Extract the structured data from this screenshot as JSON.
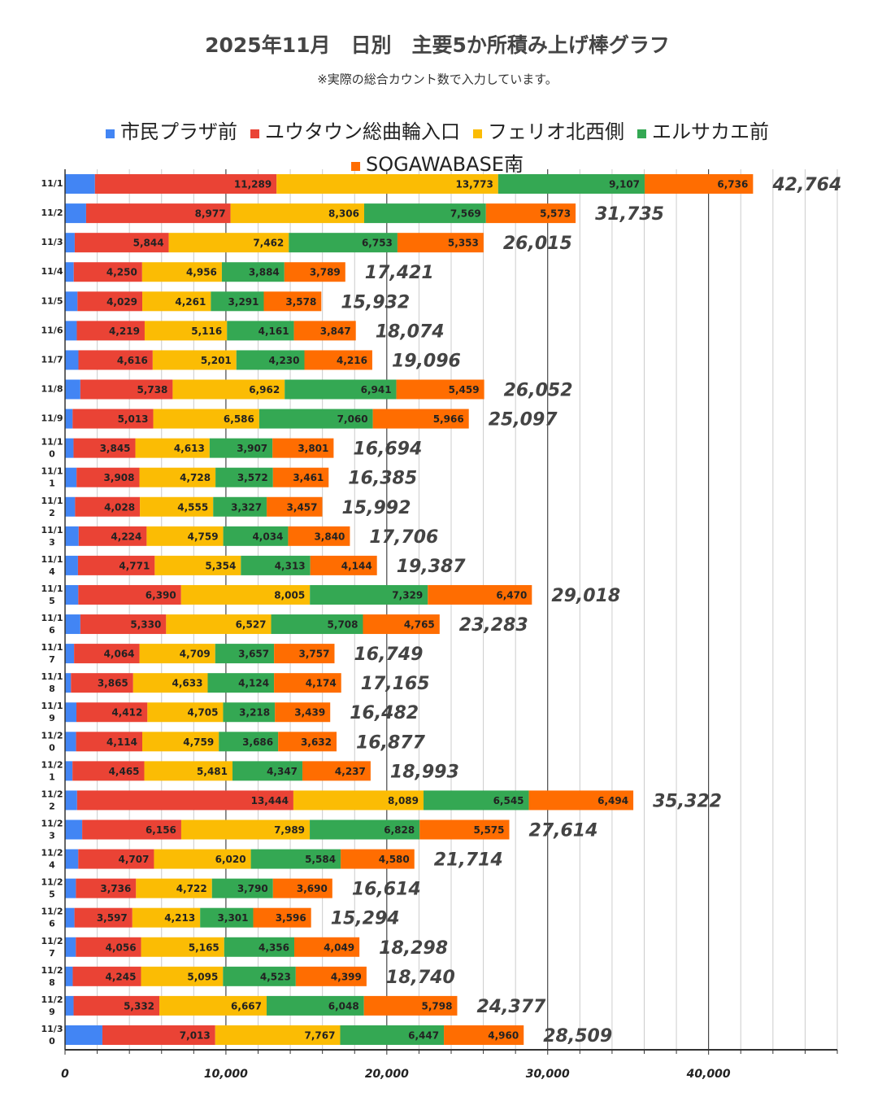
{
  "chart_data": {
    "type": "stacked-bar-horizontal",
    "title": "2025年11月　日別　主要5か所積み上げ棒グラフ",
    "subtitle": "※実際の総合カウント数で入力しています。",
    "categories": [
      "11/1",
      "11/2",
      "11/3",
      "11/4",
      "11/5",
      "11/6",
      "11/7",
      "11/8",
      "11/9",
      "11/10",
      "11/11",
      "11/12",
      "11/13",
      "11/14",
      "11/15",
      "11/16",
      "11/17",
      "11/18",
      "11/19",
      "11/20",
      "11/21",
      "11/22",
      "11/23",
      "11/24",
      "11/25",
      "11/26",
      "11/27",
      "11/28",
      "11/29",
      "11/30"
    ],
    "series": [
      {
        "name": "市民プラザ前",
        "color": "#4285f4",
        "values": [
          1859,
          1310,
          603,
          542,
          773,
          731,
          833,
          952,
          472,
          528,
          716,
          625,
          849,
          805,
          824,
          953,
          562,
          369,
          708,
          686,
          463,
          750,
          1066,
          823,
          676,
          587,
          672,
          478,
          532,
          2322
        ]
      },
      {
        "name": "ユウタウン総曲輪入口",
        "color": "#ea4335",
        "label_color": "#ffffff",
        "values": [
          11289,
          8977,
          5844,
          4250,
          4029,
          4219,
          4616,
          5738,
          5013,
          3845,
          3908,
          4028,
          4224,
          4771,
          6390,
          5330,
          4064,
          3865,
          4412,
          4114,
          4465,
          13444,
          6156,
          4707,
          3736,
          3597,
          4056,
          4245,
          5332,
          7013
        ],
        "value_labels": [
          "11,289",
          "8,977",
          "5,844",
          "4,250",
          "4,029",
          "4,219",
          "4,616",
          "5,738",
          "5,013",
          "3,845",
          "3,908",
          "4,028",
          "4,224",
          "4,771",
          "6,390",
          "5,330",
          "4,064",
          "3,865",
          "4,412",
          "4,114",
          "4,465",
          "13,444",
          "6,156",
          "4,707",
          "3,736",
          "3,597",
          "4,056",
          "4,245",
          "5,332",
          "7,013"
        ]
      },
      {
        "name": "フェリオ北西側",
        "color": "#fbbc04",
        "label_color": "#000000",
        "values": [
          13773,
          8306,
          7462,
          4956,
          4261,
          5116,
          5201,
          6962,
          6586,
          4613,
          4728,
          4555,
          4759,
          5354,
          8005,
          6527,
          4709,
          4633,
          4705,
          4759,
          5481,
          8089,
          7989,
          6020,
          4722,
          4213,
          5165,
          5095,
          6667,
          7767
        ],
        "value_labels": [
          "13,773",
          "8,306",
          "7,462",
          "4,956",
          "4,261",
          "5,116",
          "5,201",
          "6,962",
          "6,586",
          "4,613",
          "4,728",
          "4,555",
          "4,759",
          "5,354",
          "8,005",
          "6,527",
          "4,709",
          "4,633",
          "4,705",
          "4,759",
          "5,481",
          "8,089",
          "7,989",
          "6,020",
          "4,722",
          "4,213",
          "5,165",
          "5,095",
          "6,667",
          "7,767"
        ]
      },
      {
        "name": "エルサカエ前",
        "color": "#34a853",
        "label_color": "#ffffff",
        "values": [
          9107,
          7569,
          6753,
          3884,
          3291,
          4161,
          4230,
          6941,
          7060,
          3907,
          3572,
          3327,
          4034,
          4313,
          7329,
          5708,
          3657,
          4124,
          3218,
          3686,
          4347,
          6545,
          6828,
          5584,
          3790,
          3301,
          4356,
          4523,
          6048,
          6447
        ],
        "value_labels": [
          "9,107",
          "7,569",
          "6,753",
          "3,884",
          "3,291",
          "4,161",
          "4,230",
          "6,941",
          "7,060",
          "3,907",
          "3,572",
          "3,327",
          "4,034",
          "4,313",
          "7,329",
          "5,708",
          "3,657",
          "4,124",
          "3,218",
          "3,686",
          "4,347",
          "6,545",
          "6,828",
          "5,584",
          "3,790",
          "3,301",
          "4,356",
          "4,523",
          "6,048",
          "6,447"
        ]
      },
      {
        "name": "SOGAWABASE南",
        "color": "#ff6d01",
        "label_color": "#000000",
        "values": [
          6736,
          5573,
          5353,
          3789,
          3578,
          3847,
          4216,
          5459,
          5966,
          3801,
          3461,
          3457,
          3840,
          4144,
          6470,
          4765,
          3757,
          4174,
          3439,
          3632,
          4237,
          6494,
          5575,
          4580,
          3690,
          3596,
          4049,
          4399,
          5798,
          4960
        ],
        "value_labels": [
          "6,736",
          "5,573",
          "5,353",
          "3,789",
          "3,578",
          "3,847",
          "4,216",
          "5,459",
          "5,966",
          "3,801",
          "3,461",
          "3,457",
          "3,840",
          "4,144",
          "6,470",
          "4,765",
          "3,757",
          "4,174",
          "3,439",
          "3,632",
          "4,237",
          "6,494",
          "5,575",
          "4,580",
          "3,690",
          "3,596",
          "4,049",
          "4,399",
          "5,798",
          "4,960"
        ]
      }
    ],
    "totals": {
      "values": [
        42764,
        31735,
        26015,
        17421,
        15932,
        18074,
        19096,
        26052,
        25097,
        16694,
        16385,
        15992,
        17706,
        19387,
        29018,
        23283,
        16749,
        17165,
        16482,
        16877,
        18993,
        35322,
        27614,
        21714,
        16614,
        15294,
        18298,
        18740,
        24377,
        28509
      ],
      "value_labels": [
        "42,764",
        "31,735",
        "26,015",
        "17,421",
        "15,932",
        "18,074",
        "19,096",
        "26,052",
        "25,097",
        "16,694",
        "16,385",
        "15,992",
        "17,706",
        "19,387",
        "29,018",
        "23,283",
        "16,749",
        "17,165",
        "16,482",
        "16,877",
        "18,993",
        "35,322",
        "27,614",
        "21,714",
        "16,614",
        "15,294",
        "18,298",
        "18,740",
        "24,377",
        "28,509"
      ]
    },
    "xlim": [
      0,
      48000
    ],
    "xticks": [
      0,
      {
        "value": 10000,
        "label": "10,000"
      },
      {
        "value": 20000,
        "label": "20,000"
      },
      {
        "value": 30000,
        "label": "30,000"
      },
      {
        "value": 40000,
        "label": "40,000"
      }
    ],
    "minor_xticks": [
      2000,
      4000,
      6000,
      8000,
      12000,
      14000,
      16000,
      18000,
      22000,
      24000,
      26000,
      28000,
      32000,
      34000,
      36000,
      38000,
      42000,
      44000,
      46000,
      48000
    ],
    "grid": true,
    "legend": "top"
  }
}
